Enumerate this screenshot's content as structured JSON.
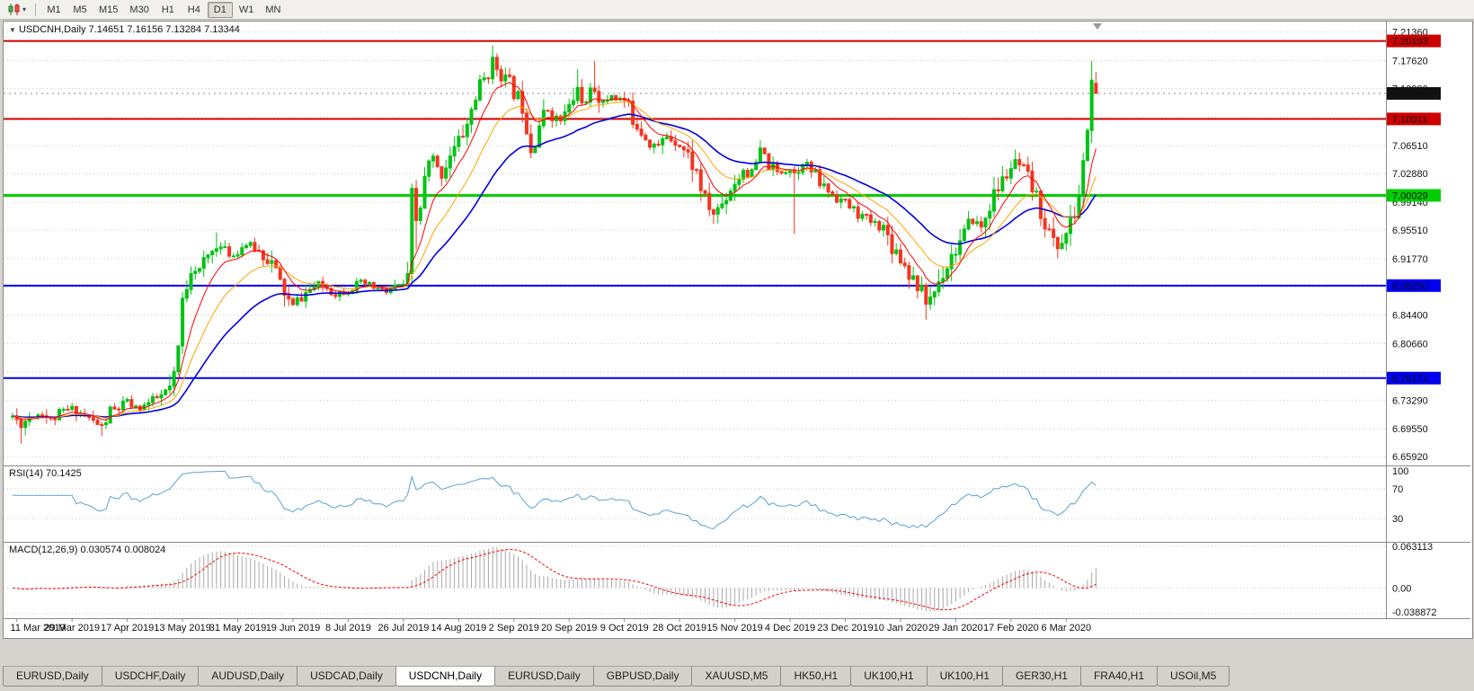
{
  "toolbar": {
    "chart_icon": "candlestick-chart-icon",
    "timeframes": [
      {
        "label": "M1"
      },
      {
        "label": "M5"
      },
      {
        "label": "M15"
      },
      {
        "label": "M30"
      },
      {
        "label": "H1"
      },
      {
        "label": "H4"
      },
      {
        "label": "D1",
        "active": true
      },
      {
        "label": "W1"
      },
      {
        "label": "MN"
      }
    ]
  },
  "chart_header": {
    "collapse_arrow": "▼",
    "title": "USDCNH,Daily",
    "ohlc_text": "7.14651 7.16156 7.13284 7.13344"
  },
  "rsi_header": {
    "name": "RSI(14)",
    "value": "70.1425"
  },
  "macd_header": {
    "name": "MACD(12,26,9)",
    "value": "0.030574 0.008024"
  },
  "current_price_badge": {
    "text": "7.13344",
    "bg": "#111111"
  },
  "chart_data": {
    "type": "candlestick",
    "symbol": "USDCNH",
    "timeframe": "Daily",
    "bars": 256,
    "current_ohlc": {
      "open": 7.14651,
      "high": 7.16156,
      "low": 7.13284,
      "close": 7.13344
    },
    "y_axis": {
      "max": 7.2249,
      "min": 6.65,
      "grid_labels": [
        {
          "text": "7.21360",
          "value": 7.2136
        },
        {
          "text": "7.17620",
          "value": 7.1762
        },
        {
          "text": "7.13990",
          "value": 7.1399
        },
        {
          "text": "7.06510",
          "value": 7.0651
        },
        {
          "text": "7.02880",
          "value": 7.0288
        },
        {
          "text": "6.99140",
          "value": 6.9914
        },
        {
          "text": "6.95510",
          "value": 6.9551
        },
        {
          "text": "6.91770",
          "value": 6.9177
        },
        {
          "text": "6.84400",
          "value": 6.844
        },
        {
          "text": "6.80660",
          "value": 6.8066
        },
        {
          "text": "6.73290",
          "value": 6.7329
        },
        {
          "text": "6.69550",
          "value": 6.6955
        },
        {
          "text": "6.65920",
          "value": 6.6592
        }
      ],
      "extra_grid_values": [
        7.1025,
        6.8803,
        6.7697
      ]
    },
    "x_axis": {
      "first_bar": 1,
      "bar_step": 13,
      "labels": [
        "11 Mar 2019",
        "29 Mar 2019",
        "17 Apr 2019",
        "13 May 2019",
        "31 May 2019",
        "19 Jun 2019",
        "8 Jul 2019",
        "26 Jul 2019",
        "14 Aug 2019",
        "2 Sep 2019",
        "20 Sep 2019",
        "9 Oct 2019",
        "28 Oct 2019",
        "15 Nov 2019",
        "4 Dec 2019",
        "23 Dec 2019",
        "10 Jan 2020",
        "29 Jan 2020",
        "17 Feb 2020",
        "6 Mar 2020"
      ]
    },
    "horizontal_lines": [
      {
        "value": 7.20193,
        "text": "7.20193",
        "color": "#cc0000",
        "width": 2
      },
      {
        "value": 7.10011,
        "text": "7.10011",
        "color": "#cc0000",
        "width": 2
      },
      {
        "value": 7.00029,
        "text": "7.00029",
        "color": "#00ce00",
        "width": 3
      },
      {
        "value": 6.8825,
        "text": "6.88250",
        "color": "#0000ee",
        "width": 2
      },
      {
        "value": 6.76171,
        "text": "6.76171",
        "color": "#0000ee",
        "width": 2
      }
    ],
    "close_anchors": [
      [
        0,
        6.712
      ],
      [
        2,
        6.7
      ],
      [
        4,
        6.712
      ],
      [
        7,
        6.716
      ],
      [
        9,
        6.707
      ],
      [
        12,
        6.718
      ],
      [
        14,
        6.722
      ],
      [
        17,
        6.712
      ],
      [
        19,
        6.705
      ],
      [
        21,
        6.698
      ],
      [
        23,
        6.718
      ],
      [
        25,
        6.722
      ],
      [
        27,
        6.731
      ],
      [
        29,
        6.722
      ],
      [
        31,
        6.726
      ],
      [
        33,
        6.732
      ],
      [
        35,
        6.738
      ],
      [
        37,
        6.748
      ],
      [
        38,
        6.76
      ],
      [
        39,
        6.8
      ],
      [
        40,
        6.862
      ],
      [
        41,
        6.884
      ],
      [
        42,
        6.908
      ],
      [
        44,
        6.902
      ],
      [
        46,
        6.92
      ],
      [
        48,
        6.935
      ],
      [
        50,
        6.928
      ],
      [
        52,
        6.922
      ],
      [
        53,
        6.93
      ],
      [
        55,
        6.936
      ],
      [
        57,
        6.932
      ],
      [
        59,
        6.922
      ],
      [
        61,
        6.912
      ],
      [
        63,
        6.885
      ],
      [
        65,
        6.862
      ],
      [
        66,
        6.856
      ],
      [
        68,
        6.868
      ],
      [
        70,
        6.877
      ],
      [
        72,
        6.884
      ],
      [
        74,
        6.88
      ],
      [
        76,
        6.872
      ],
      [
        79,
        6.877
      ],
      [
        82,
        6.886
      ],
      [
        85,
        6.88
      ],
      [
        88,
        6.874
      ],
      [
        90,
        6.88
      ],
      [
        92,
        6.884
      ],
      [
        93,
        6.888
      ],
      [
        94,
        7.0
      ],
      [
        95,
        6.966
      ],
      [
        96,
        6.985
      ],
      [
        97,
        7.02
      ],
      [
        98,
        7.04
      ],
      [
        99,
        7.048
      ],
      [
        100,
        7.032
      ],
      [
        101,
        7.028
      ],
      [
        102,
        7.042
      ],
      [
        103,
        7.056
      ],
      [
        104,
        7.062
      ],
      [
        105,
        7.07
      ],
      [
        106,
        7.082
      ],
      [
        107,
        7.092
      ],
      [
        108,
        7.112
      ],
      [
        109,
        7.13
      ],
      [
        110,
        7.142
      ],
      [
        111,
        7.152
      ],
      [
        112,
        7.163
      ],
      [
        113,
        7.176
      ],
      [
        114,
        7.168
      ],
      [
        115,
        7.16
      ],
      [
        116,
        7.152
      ],
      [
        117,
        7.146
      ],
      [
        118,
        7.136
      ],
      [
        119,
        7.128
      ],
      [
        120,
        7.118
      ],
      [
        121,
        7.092
      ],
      [
        122,
        7.062
      ],
      [
        123,
        7.075
      ],
      [
        124,
        7.094
      ],
      [
        125,
        7.103
      ],
      [
        126,
        7.112
      ],
      [
        127,
        7.106
      ],
      [
        128,
        7.1
      ],
      [
        129,
        7.098
      ],
      [
        130,
        7.106
      ],
      [
        131,
        7.114
      ],
      [
        132,
        7.126
      ],
      [
        133,
        7.14
      ],
      [
        134,
        7.13
      ],
      [
        135,
        7.12
      ],
      [
        136,
        7.13
      ],
      [
        137,
        7.138
      ],
      [
        138,
        7.13
      ],
      [
        139,
        7.12
      ],
      [
        140,
        7.126
      ],
      [
        141,
        7.132
      ],
      [
        142,
        7.128
      ],
      [
        144,
        7.124
      ],
      [
        146,
        7.102
      ],
      [
        148,
        7.086
      ],
      [
        150,
        7.07
      ],
      [
        152,
        7.064
      ],
      [
        154,
        7.078
      ],
      [
        157,
        7.068
      ],
      [
        159,
        7.052
      ],
      [
        161,
        7.03
      ],
      [
        163,
        6.992
      ],
      [
        165,
        6.976
      ],
      [
        167,
        6.99
      ],
      [
        169,
        7.01
      ],
      [
        170,
        7.018
      ],
      [
        172,
        7.034
      ],
      [
        174,
        7.026
      ],
      [
        176,
        7.058
      ],
      [
        178,
        7.04
      ],
      [
        180,
        7.03
      ],
      [
        183,
        7.036
      ],
      [
        184,
        7.03
      ],
      [
        186,
        7.044
      ],
      [
        188,
        7.032
      ],
      [
        190,
        7.016
      ],
      [
        193,
        7.002
      ],
      [
        196,
        6.99
      ],
      [
        199,
        6.976
      ],
      [
        202,
        6.966
      ],
      [
        205,
        6.958
      ],
      [
        207,
        6.936
      ],
      [
        209,
        6.92
      ],
      [
        211,
        6.9
      ],
      [
        213,
        6.884
      ],
      [
        215,
        6.86
      ],
      [
        217,
        6.876
      ],
      [
        219,
        6.9
      ],
      [
        221,
        6.922
      ],
      [
        222,
        6.93
      ],
      [
        224,
        6.948
      ],
      [
        226,
        6.968
      ],
      [
        228,
        6.958
      ],
      [
        230,
        6.988
      ],
      [
        232,
        7.01
      ],
      [
        234,
        7.028
      ],
      [
        236,
        7.044
      ],
      [
        238,
        7.03
      ],
      [
        240,
        7.01
      ],
      [
        242,
        6.98
      ],
      [
        244,
        6.95
      ],
      [
        246,
        6.932
      ],
      [
        248,
        6.95
      ],
      [
        250,
        6.976
      ],
      [
        251,
        7.0
      ],
      [
        252,
        7.04
      ],
      [
        253,
        7.09
      ],
      [
        254,
        7.146
      ],
      [
        255,
        7.133
      ]
    ],
    "wick_overrides": [
      {
        "bar": 2,
        "low": 6.676
      },
      {
        "bar": 21,
        "low": 6.686
      },
      {
        "bar": 48,
        "high": 6.952
      },
      {
        "bar": 95,
        "low": 6.93
      },
      {
        "bar": 113,
        "high": 7.196
      },
      {
        "bar": 122,
        "low": 7.052
      },
      {
        "bar": 133,
        "high": 7.165
      },
      {
        "bar": 137,
        "high": 7.176
      },
      {
        "bar": 165,
        "low": 6.963
      },
      {
        "bar": 176,
        "high": 7.072
      },
      {
        "bar": 184,
        "low": 6.95
      },
      {
        "bar": 215,
        "low": 6.838
      },
      {
        "bar": 236,
        "high": 7.06
      },
      {
        "bar": 246,
        "low": 6.918
      },
      {
        "bar": 254,
        "high": 7.176
      }
    ],
    "candle_colors": {
      "up": "#00c314",
      "down": "#f4351f"
    },
    "moving_averages": [
      {
        "period": 8,
        "color": "#ff0000",
        "width": 1
      },
      {
        "period": 17,
        "color": "#ffa500",
        "width": 1
      },
      {
        "period": 34,
        "color": "#0000e0",
        "width": 1.6
      }
    ],
    "rsi": {
      "period": 14,
      "color": "#59a2d4",
      "current": "70.1425",
      "levels": [
        {
          "text": "100",
          "value": 100
        },
        {
          "text": "70",
          "value": 70
        },
        {
          "text": "30",
          "value": 30
        }
      ]
    },
    "macd": {
      "fast": 12,
      "slow": 26,
      "signal_period": 9,
      "histogram_color": "#a8a8a8",
      "signal_color": "#ff0000",
      "current": "0.030574 0.008024",
      "scale_labels": [
        {
          "text": "0.063113",
          "value": 0.063113
        },
        {
          "text": "0.00",
          "value": 0
        },
        {
          "text": "-0.038872",
          "value": -0.038872
        }
      ]
    },
    "seed": 11
  },
  "tabs": [
    {
      "label": "EURUSD,Daily"
    },
    {
      "label": "USDCHF,Daily"
    },
    {
      "label": "AUDUSD,Daily"
    },
    {
      "label": "USDCAD,Daily"
    },
    {
      "label": "USDCNH,Daily",
      "active": true
    },
    {
      "label": "EURUSD,Daily"
    },
    {
      "label": "GBPUSD,Daily"
    },
    {
      "label": "XAUUSD,M5"
    },
    {
      "label": "HK50,H1"
    },
    {
      "label": "UK100,H1"
    },
    {
      "label": "UK100,H1"
    },
    {
      "label": "GER30,H1"
    },
    {
      "label": "FRA40,H1"
    },
    {
      "label": "USOil,M5"
    }
  ]
}
